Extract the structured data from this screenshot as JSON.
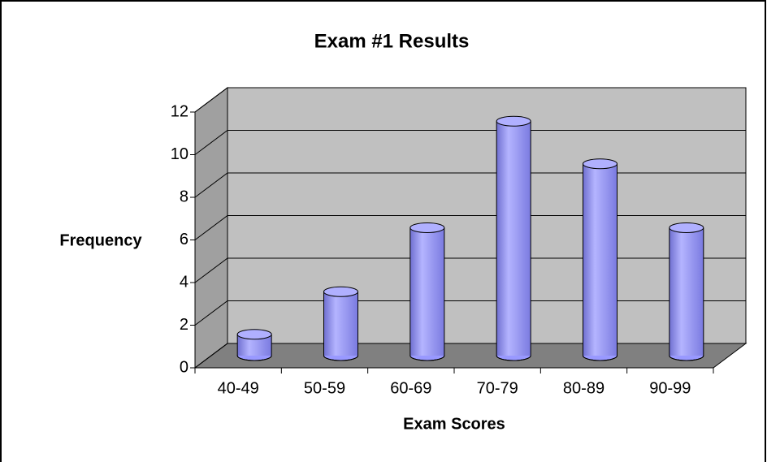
{
  "chart_data": {
    "type": "bar",
    "title": "Exam #1 Results",
    "xlabel": "Exam Scores",
    "ylabel": "Frequency",
    "categories": [
      "40-49",
      "50-59",
      "60-69",
      "70-79",
      "80-89",
      "90-99"
    ],
    "values": [
      1,
      3,
      6,
      11,
      9,
      6
    ],
    "color": "#9999ff",
    "ylim": [
      0,
      12
    ],
    "yticks": [
      0,
      2,
      4,
      6,
      8,
      10,
      12
    ],
    "grid": true
  }
}
